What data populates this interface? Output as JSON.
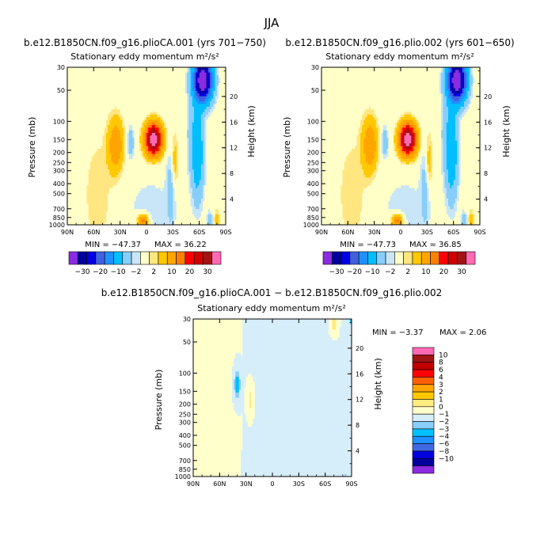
{
  "figure": {
    "title": "JJA"
  },
  "colors": {
    "palette_main": [
      "#8a2be2",
      "#0000a0",
      "#0000e0",
      "#4060e0",
      "#1e90ff",
      "#00bfff",
      "#87cefa",
      "#c8e6f8",
      "#ffffc8",
      "#ffe680",
      "#ffc800",
      "#ffa500",
      "#ff7f00",
      "#ff0000",
      "#d00000",
      "#a01414",
      "#ff69b4"
    ],
    "palette_diff": [
      "#8a2be2",
      "#0000a0",
      "#0000e0",
      "#4169e1",
      "#1e90ff",
      "#00bfff",
      "#87cefa",
      "#d6eefa",
      "#ffffcc",
      "#ffeb80",
      "#ffc800",
      "#ffa500",
      "#ff6000",
      "#ff0000",
      "#c00000",
      "#a01414",
      "#ff69b4"
    ]
  },
  "chart_data": [
    {
      "type": "heatmap",
      "title": "b.e12.B1850CN.f09_g16.plioCA.001 (yrs 701−750)",
      "subtitle": "Stationary eddy momentum  m²/s²",
      "ylabel": "Pressure (mb)",
      "y2label": "Height (km)",
      "x_ticks": [
        "90N",
        "60N",
        "30N",
        "0",
        "30S",
        "60S",
        "90S"
      ],
      "y_ticks": [
        "30",
        "50",
        "100",
        "150",
        "200",
        "250",
        "300",
        "400",
        "500",
        "700",
        "850",
        "1000"
      ],
      "y2_ticks": [
        "20",
        "16",
        "12",
        "8",
        "4"
      ],
      "min_label": "MIN = −47.37",
      "max_label": "MAX = 36.22",
      "min": -47.37,
      "max": 36.22,
      "features": [
        {
          "lat": -8,
          "p": 150,
          "value": 36
        },
        {
          "lat": 18,
          "p": 160,
          "value": -4
        },
        {
          "lat": 35,
          "p": 160,
          "value": 8
        },
        {
          "lat": -62,
          "p": 40,
          "value": -40
        },
        {
          "lat": 5,
          "p": 930,
          "value": 12
        }
      ]
    },
    {
      "type": "heatmap",
      "title": "b.e12.B1850CN.f09_g16.plio.002 (yrs 601−650)",
      "subtitle": "Stationary eddy momentum  m²/s²",
      "ylabel": "Pressure (mb)",
      "y2label": "Height (km)",
      "x_ticks": [
        "90N",
        "60N",
        "30N",
        "0",
        "30S",
        "60S",
        "90S"
      ],
      "y_ticks": [
        "30",
        "50",
        "100",
        "150",
        "200",
        "250",
        "300",
        "400",
        "500",
        "700",
        "850",
        "1000"
      ],
      "y2_ticks": [
        "20",
        "16",
        "12",
        "8",
        "4"
      ],
      "min_label": "MIN = −47.73",
      "max_label": "MAX = 36.85",
      "min": -47.73,
      "max": 36.85,
      "features": [
        {
          "lat": -8,
          "p": 150,
          "value": 36
        },
        {
          "lat": 18,
          "p": 160,
          "value": -4
        },
        {
          "lat": 35,
          "p": 160,
          "value": 8
        },
        {
          "lat": -62,
          "p": 40,
          "value": -40
        },
        {
          "lat": 5,
          "p": 930,
          "value": 12
        }
      ]
    },
    {
      "type": "heatmap",
      "title": "b.e12.B1850CN.f09_g16.plioCA.001 − b.e12.B1850CN.f09_g16.plio.002",
      "subtitle": "Stationary eddy momentum  m²/s²",
      "ylabel": "Pressure (mb)",
      "y2label": "Height (km)",
      "x_ticks": [
        "90N",
        "60N",
        "30N",
        "0",
        "30S",
        "60S",
        "90S"
      ],
      "y_ticks": [
        "30",
        "50",
        "100",
        "150",
        "200",
        "250",
        "300",
        "400",
        "500",
        "700",
        "850",
        "1000"
      ],
      "y2_ticks": [
        "20",
        "16",
        "12",
        "8",
        "4"
      ],
      "min_label": "MIN =   −3.37",
      "max_label": "MAX =   2.06",
      "min": -3.37,
      "max": 2.06,
      "features": [
        {
          "lat": 40,
          "p": 130,
          "value": -2.5
        },
        {
          "lat": 25,
          "p": 180,
          "value": 1.5
        },
        {
          "lat": -70,
          "p": 35,
          "value": 1.5
        },
        {
          "lat": -90,
          "p": 30,
          "value": -3
        }
      ]
    }
  ],
  "colorbar_main": {
    "labels": [
      "−30",
      "−20",
      "−10",
      "−2",
      "2",
      "10",
      "20",
      "30"
    ]
  },
  "colorbar_diff": {
    "labels": [
      "10",
      "8",
      "6",
      "4",
      "3",
      "2",
      "1",
      "0",
      "−1",
      "−2",
      "−3",
      "−4",
      "−6",
      "−8",
      "−10"
    ]
  }
}
